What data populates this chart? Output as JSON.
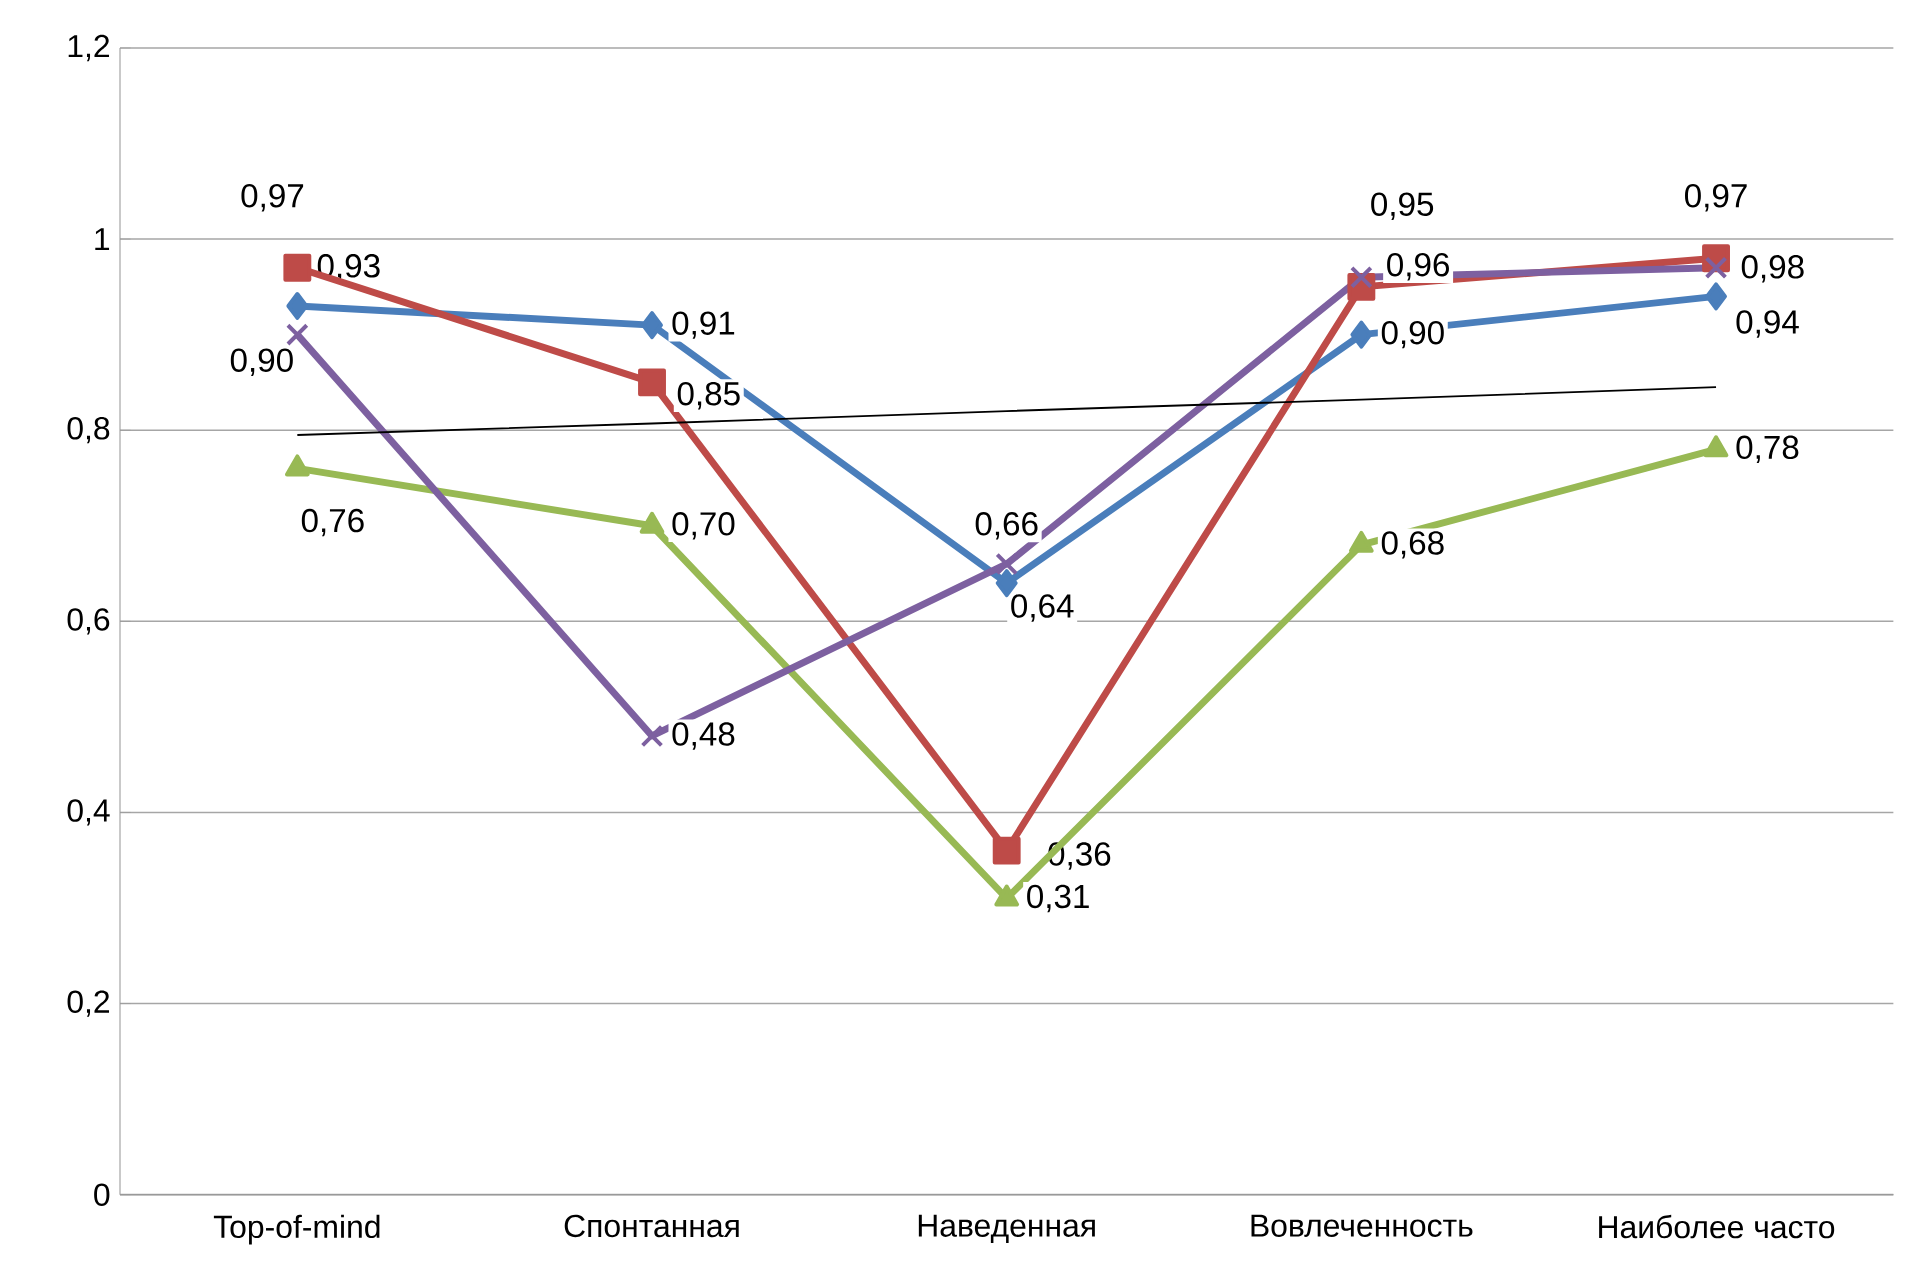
{
  "chart_data": {
    "type": "line",
    "categories": [
      "Top-of-mind",
      "Спонтанная",
      "Наведенная",
      "Вовлеченность",
      "Наиболее часто"
    ],
    "ylim": [
      0,
      1.2
    ],
    "yticks": [
      0,
      {
        "value": 0.2,
        "label": "0,2"
      },
      {
        "value": 0.4,
        "label": "0,4"
      },
      {
        "value": 0.6,
        "label": "0,6"
      },
      {
        "value": 0.8,
        "label": "0,8"
      },
      1,
      {
        "value": 1.2,
        "label": "1,2"
      }
    ],
    "grid": "y",
    "series": [
      {
        "color": "#4a7ebb",
        "marker": "diamond",
        "values": [
          0.93,
          0.91,
          0.64,
          0.9,
          0.94
        ],
        "value_labels": [
          "0,93",
          "0,91",
          "0,64",
          "0,90",
          "0,94"
        ]
      },
      {
        "color": "#be4b48",
        "marker": "square",
        "values": [
          0.97,
          0.85,
          0.36,
          0.95,
          0.98
        ],
        "value_labels": [
          "0,97",
          "0,85",
          "0,36",
          "0,95",
          "0,98"
        ]
      },
      {
        "color": "#98b954",
        "marker": "triangle",
        "values": [
          0.76,
          0.7,
          0.31,
          0.68,
          0.78
        ],
        "value_labels": [
          "0,76",
          "0,70",
          "0,31",
          "0,68",
          "0,78"
        ]
      },
      {
        "color": "#7d60a0",
        "marker": "cross",
        "values": [
          0.9,
          0.48,
          0.66,
          0.96,
          0.97
        ],
        "value_labels": [
          "0,90",
          "0,48",
          "0,66",
          "0,96",
          "0,97"
        ]
      },
      {
        "type": "line",
        "color": "#000000",
        "marker": "none",
        "values": [
          0.795,
          0.807,
          0.82,
          0.832,
          0.845
        ]
      }
    ]
  }
}
